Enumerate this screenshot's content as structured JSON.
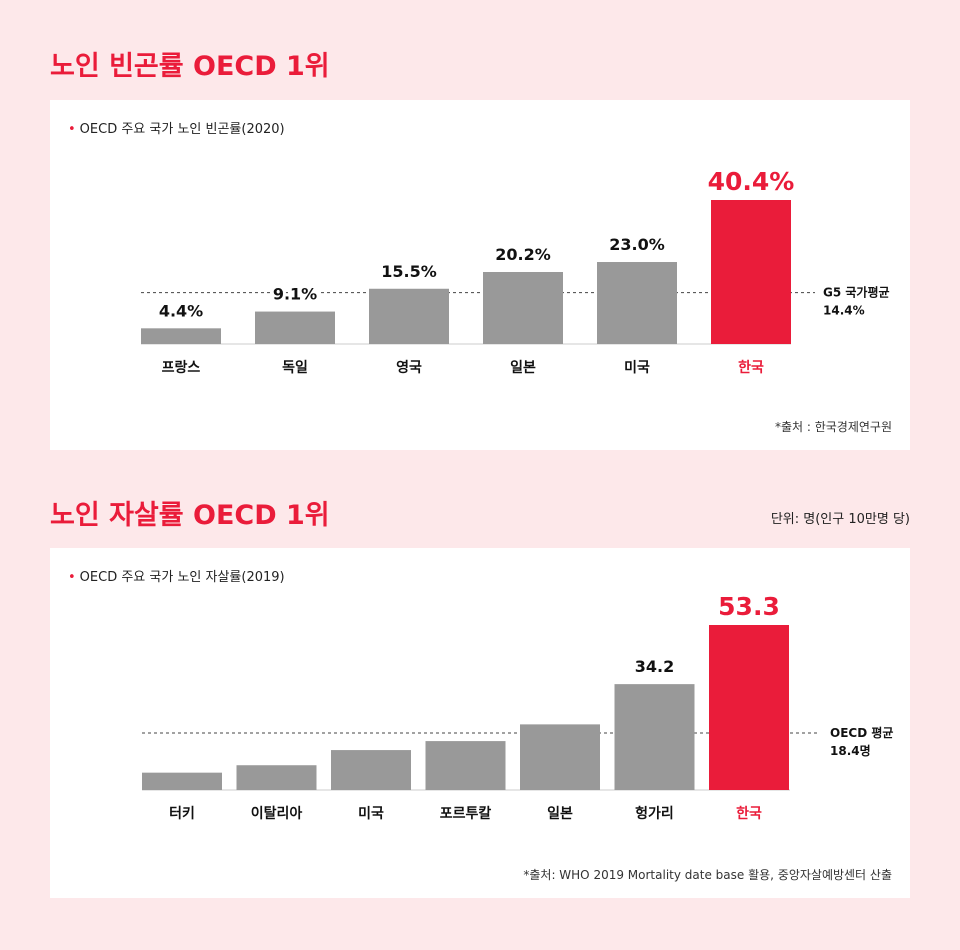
{
  "colors": {
    "accent": "#ea1c3a",
    "bar": "#999999",
    "background": "#fde8ea",
    "card": "#ffffff",
    "text": "#111111"
  },
  "section1": {
    "title": "노인 빈곤률 OECD 1위",
    "subtitle": "OECD 주요 국가 노인 빈곤률(2020)",
    "source": "*출처 : 한국경제연구원"
  },
  "section2": {
    "title": "노인 자살률 OECD 1위",
    "unit": "단위: 명(인구 10만명 당)",
    "subtitle": "OECD 주요 국가 노인 자살률(2019)",
    "source": "*출처: WHO 2019 Mortality date base 활용, 중앙자살예방센터 산출"
  },
  "chart_data": [
    {
      "type": "bar",
      "title": "OECD 주요 국가 노인 빈곤률(2020)",
      "categories": [
        "프랑스",
        "독일",
        "영국",
        "일본",
        "미국",
        "한국"
      ],
      "values": [
        4.4,
        9.1,
        15.5,
        20.2,
        23.0,
        40.4
      ],
      "value_labels": [
        "4.4%",
        "9.1%",
        "15.5%",
        "20.2%",
        "23.0%",
        "40.4%"
      ],
      "highlight_index": 5,
      "ylim": [
        0,
        40.4
      ],
      "reference_line": {
        "value": 14.4,
        "label_line1": "G5 국가평균",
        "label_line2": "14.4%"
      },
      "grid": false
    },
    {
      "type": "bar",
      "title": "OECD 주요 국가 노인 자살률(2019)",
      "categories": [
        "터키",
        "이탈리아",
        "미국",
        "포르투칼",
        "일본",
        "헝가리",
        "한국"
      ],
      "values": [
        5.6,
        8.0,
        12.9,
        15.8,
        21.2,
        34.2,
        53.3
      ],
      "value_labels": [
        "",
        "",
        "",
        "",
        "",
        "34.2",
        "53.3"
      ],
      "highlight_index": 6,
      "ylim": [
        0,
        53.3
      ],
      "reference_line": {
        "value": 18.4,
        "label_line1": "OECD 평균",
        "label_line2": "18.4명"
      },
      "grid": false
    }
  ]
}
